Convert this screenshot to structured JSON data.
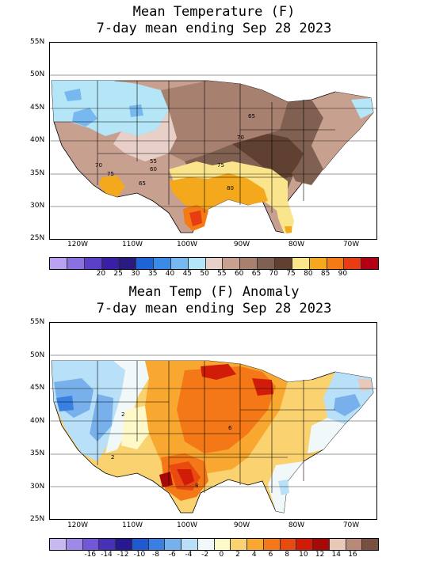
{
  "panel1": {
    "title_line1": "Mean Temperature (F)",
    "title_line2": "7-day mean ending Sep 28 2023",
    "lat_labels": [
      "55N",
      "50N",
      "45N",
      "40N",
      "35N",
      "30N",
      "25N"
    ],
    "lon_labels": [
      "120W",
      "110W",
      "100W",
      "90W",
      "80W",
      "70W"
    ],
    "colorbar_ticks": [
      "20",
      "25",
      "30",
      "35",
      "40",
      "45",
      "50",
      "55",
      "60",
      "65",
      "70",
      "75",
      "80",
      "85",
      "90"
    ],
    "colorbar_colors": [
      "#b9a3f0",
      "#8a70e0",
      "#5a40c8",
      "#3a1ea8",
      "#2a1a80",
      "#1e64d8",
      "#3a8ae8",
      "#78b8f0",
      "#b4e6f8",
      "#e8d0c8",
      "#c8a090",
      "#a88070",
      "#806050",
      "#604030",
      "#fae48c",
      "#f4a81c",
      "#f47a14",
      "#e83c14",
      "#b40014"
    ],
    "contour_labels": [
      "65",
      "70",
      "70",
      "55",
      "60",
      "65",
      "75",
      "75",
      "80"
    ]
  },
  "panel2": {
    "title_line1": "Mean Temp (F) Anomaly",
    "title_line2": "7-day mean ending Sep 28 2023",
    "lat_labels": [
      "55N",
      "50N",
      "45N",
      "40N",
      "35N",
      "30N",
      "25N"
    ],
    "lon_labels": [
      "120W",
      "110W",
      "100W",
      "90W",
      "80W",
      "70W"
    ],
    "colorbar_ticks": [
      "-16",
      "-14",
      "-12",
      "-10",
      "-8",
      "-6",
      "-4",
      "-2",
      "0",
      "2",
      "4",
      "6",
      "8",
      "10",
      "12",
      "14",
      "16"
    ],
    "colorbar_colors": [
      "#c8b8f0",
      "#a088e8",
      "#7058d8",
      "#4830b8",
      "#281890",
      "#1e5ad0",
      "#3a80e0",
      "#78b0ec",
      "#b8e0f8",
      "#f0f8fa",
      "#fff8c8",
      "#fad270",
      "#f8a830",
      "#f47818",
      "#e84a10",
      "#d01c08",
      "#a80808",
      "#e8c8b8",
      "#b88878",
      "#785040"
    ],
    "contour_labels": [
      "2",
      "2",
      "6",
      "8"
    ]
  }
}
